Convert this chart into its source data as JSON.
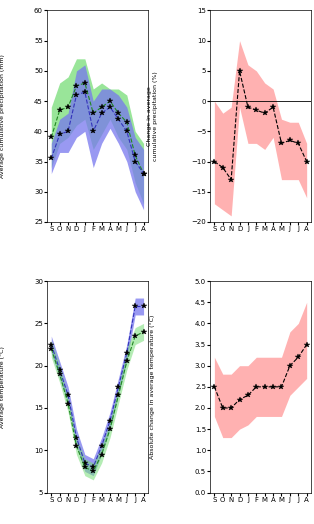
{
  "months": [
    "S",
    "O",
    "N",
    "D",
    "J",
    "F",
    "M",
    "A",
    "M",
    "J",
    "J",
    "A"
  ],
  "precip_mean_green": [
    39,
    43.5,
    44,
    47.5,
    48,
    43,
    44,
    45,
    43,
    41.5,
    36,
    33
  ],
  "precip_upper_green": [
    44,
    48,
    49,
    52,
    52,
    47,
    48,
    47,
    47,
    46,
    40,
    38
  ],
  "precip_lower_green": [
    34,
    38,
    39,
    41,
    42,
    37,
    39.5,
    42,
    39,
    37,
    31.5,
    28
  ],
  "precip_mean_blue": [
    35.5,
    39.5,
    40,
    46,
    46.5,
    40,
    43,
    44,
    42,
    40,
    35,
    33
  ],
  "precip_upper_blue": [
    38,
    42,
    43,
    50,
    51,
    45,
    47,
    47,
    46,
    44,
    39,
    37
  ],
  "precip_lower_blue": [
    33,
    36.5,
    36.5,
    39,
    40,
    34,
    38,
    40.5,
    38,
    35,
    30,
    27
  ],
  "change_precip_mean": [
    -10,
    -11,
    -13,
    5,
    -1,
    -1.5,
    -2,
    -1,
    -7,
    -6.5,
    -7,
    -10
  ],
  "change_precip_upper": [
    0,
    -2,
    -1,
    10,
    6,
    5,
    3,
    2,
    -3,
    -3.5,
    -3.5,
    -7
  ],
  "change_precip_lower": [
    -17,
    -18,
    -19,
    -1,
    -7,
    -7,
    -8,
    -6,
    -13,
    -13,
    -13,
    -16
  ],
  "temp_mean_blue": [
    22.5,
    19.5,
    16.5,
    11.5,
    8.5,
    8.0,
    10.5,
    13.5,
    17.5,
    21.5,
    27.0,
    27.0
  ],
  "temp_upper_blue": [
    23.5,
    20.5,
    17.5,
    12.5,
    9.5,
    9.0,
    11.5,
    14.5,
    18.5,
    22.5,
    28.0,
    28.0
  ],
  "temp_lower_blue": [
    21.5,
    18.5,
    15.5,
    10.5,
    7.5,
    7.0,
    9.5,
    12.5,
    16.5,
    20.5,
    26.0,
    26.0
  ],
  "temp_mean_green": [
    22.0,
    19.0,
    15.5,
    10.5,
    8.0,
    7.5,
    9.5,
    12.5,
    16.5,
    20.5,
    23.5,
    24.0
  ],
  "temp_upper_green": [
    23.0,
    20.0,
    16.5,
    11.5,
    9.0,
    8.5,
    10.5,
    13.5,
    17.5,
    22.0,
    24.5,
    25.0
  ],
  "temp_lower_green": [
    21.0,
    18.0,
    14.5,
    9.5,
    7.0,
    6.5,
    8.5,
    11.5,
    15.5,
    19.5,
    22.5,
    23.0
  ],
  "change_temp_mean": [
    2.5,
    2.0,
    2.0,
    2.2,
    2.3,
    2.5,
    2.5,
    2.5,
    2.5,
    3.0,
    3.2,
    3.5
  ],
  "change_temp_upper": [
    3.2,
    2.8,
    2.8,
    3.0,
    3.0,
    3.2,
    3.2,
    3.2,
    3.2,
    3.8,
    4.0,
    4.5
  ],
  "change_temp_lower": [
    1.8,
    1.3,
    1.3,
    1.5,
    1.6,
    1.8,
    1.8,
    1.8,
    1.8,
    2.3,
    2.5,
    2.7
  ],
  "precip_ylim": [
    25,
    60
  ],
  "precip_yticks": [
    25,
    30,
    35,
    40,
    45,
    50,
    55,
    60
  ],
  "change_precip_ylim": [
    -20,
    15
  ],
  "change_precip_yticks": [
    -20,
    -15,
    -10,
    -5,
    0,
    5,
    10,
    15
  ],
  "temp_ylim": [
    5,
    30
  ],
  "temp_yticks": [
    5,
    10,
    15,
    20,
    25,
    30
  ],
  "change_temp_ylim": [
    0,
    5
  ],
  "change_temp_yticks": [
    0,
    0.5,
    1.0,
    1.5,
    2.0,
    2.5,
    3.0,
    3.5,
    4.0,
    4.5,
    5.0
  ],
  "precip_ylabel": "Average cumulative precipitation (mm)",
  "change_precip_ylabel": "Change in average\ncumulative precipitation (%)",
  "temp_ylabel": "Average temperature (°C)",
  "change_temp_ylabel": "Absolute change in average temperature (°C)"
}
